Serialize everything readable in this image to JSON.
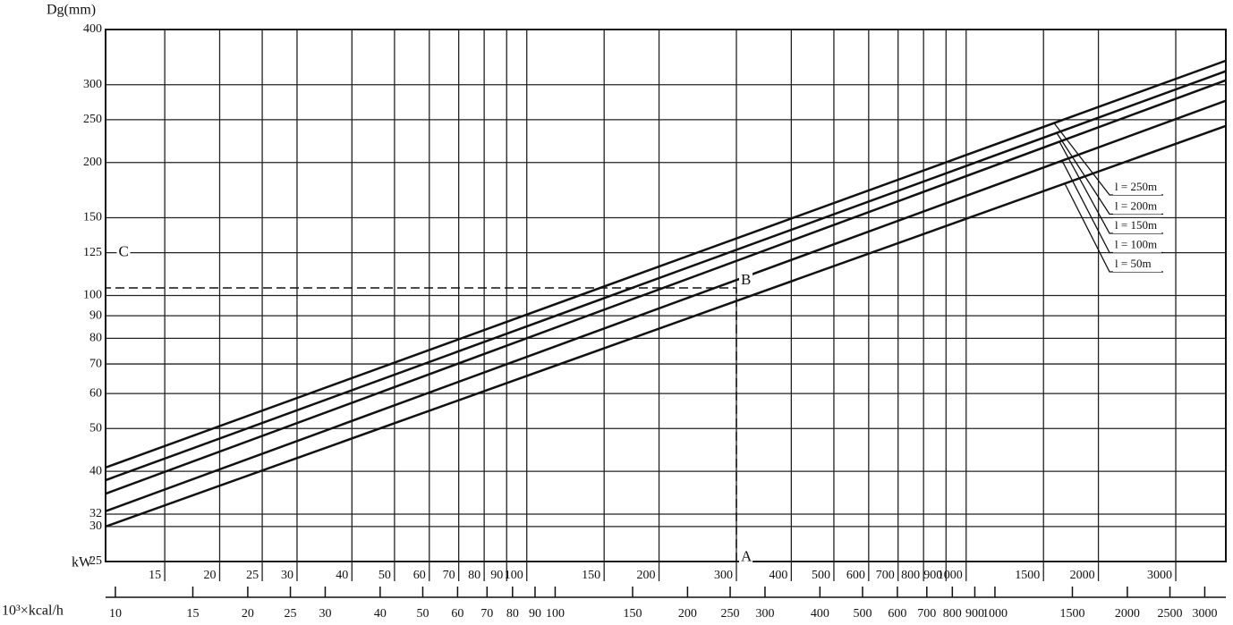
{
  "chart_data": {
    "type": "line",
    "log_scale": true,
    "grid": true,
    "y_label": "Dg(mm)",
    "x_label": "kW",
    "x2_label": "10³×kcal/h",
    "x": [
      11,
      3900
    ],
    "xlim": [
      11,
      3900
    ],
    "xticks": [
      15,
      20,
      25,
      30,
      40,
      50,
      60,
      70,
      80,
      90,
      100,
      150,
      200,
      300,
      400,
      500,
      600,
      700,
      800,
      900,
      1000,
      1500,
      2000,
      3000
    ],
    "x2lim": [
      9.5,
      3350
    ],
    "x2ticks": [
      10,
      15,
      20,
      25,
      30,
      40,
      50,
      60,
      70,
      80,
      90,
      100,
      150,
      200,
      250,
      300,
      400,
      500,
      600,
      700,
      800,
      900,
      1000,
      1500,
      2000,
      2500,
      3000
    ],
    "ylim": [
      25,
      400
    ],
    "yticks": [
      25,
      30,
      32,
      40,
      50,
      60,
      70,
      80,
      90,
      100,
      125,
      150,
      200,
      250,
      300,
      400
    ],
    "series": [
      {
        "name": "l = 250m",
        "color": "#111111",
        "values": [
          40.8,
          340
        ]
      },
      {
        "name": "l = 200m",
        "color": "#111111",
        "values": [
          38.2,
          322
        ]
      },
      {
        "name": "l = 150m",
        "color": "#111111",
        "values": [
          35.6,
          307
        ]
      },
      {
        "name": "l = 100m",
        "color": "#111111",
        "values": [
          32.5,
          276
        ]
      },
      {
        "name": "l = 50m",
        "color": "#111111",
        "values": [
          30,
          242
        ]
      }
    ],
    "annotations": [
      {
        "text": "A",
        "x": 300,
        "y": 25.5
      },
      {
        "text": "B",
        "x": 300,
        "y": 108
      },
      {
        "text": "C",
        "x": 11.5,
        "y": 125
      }
    ]
  }
}
